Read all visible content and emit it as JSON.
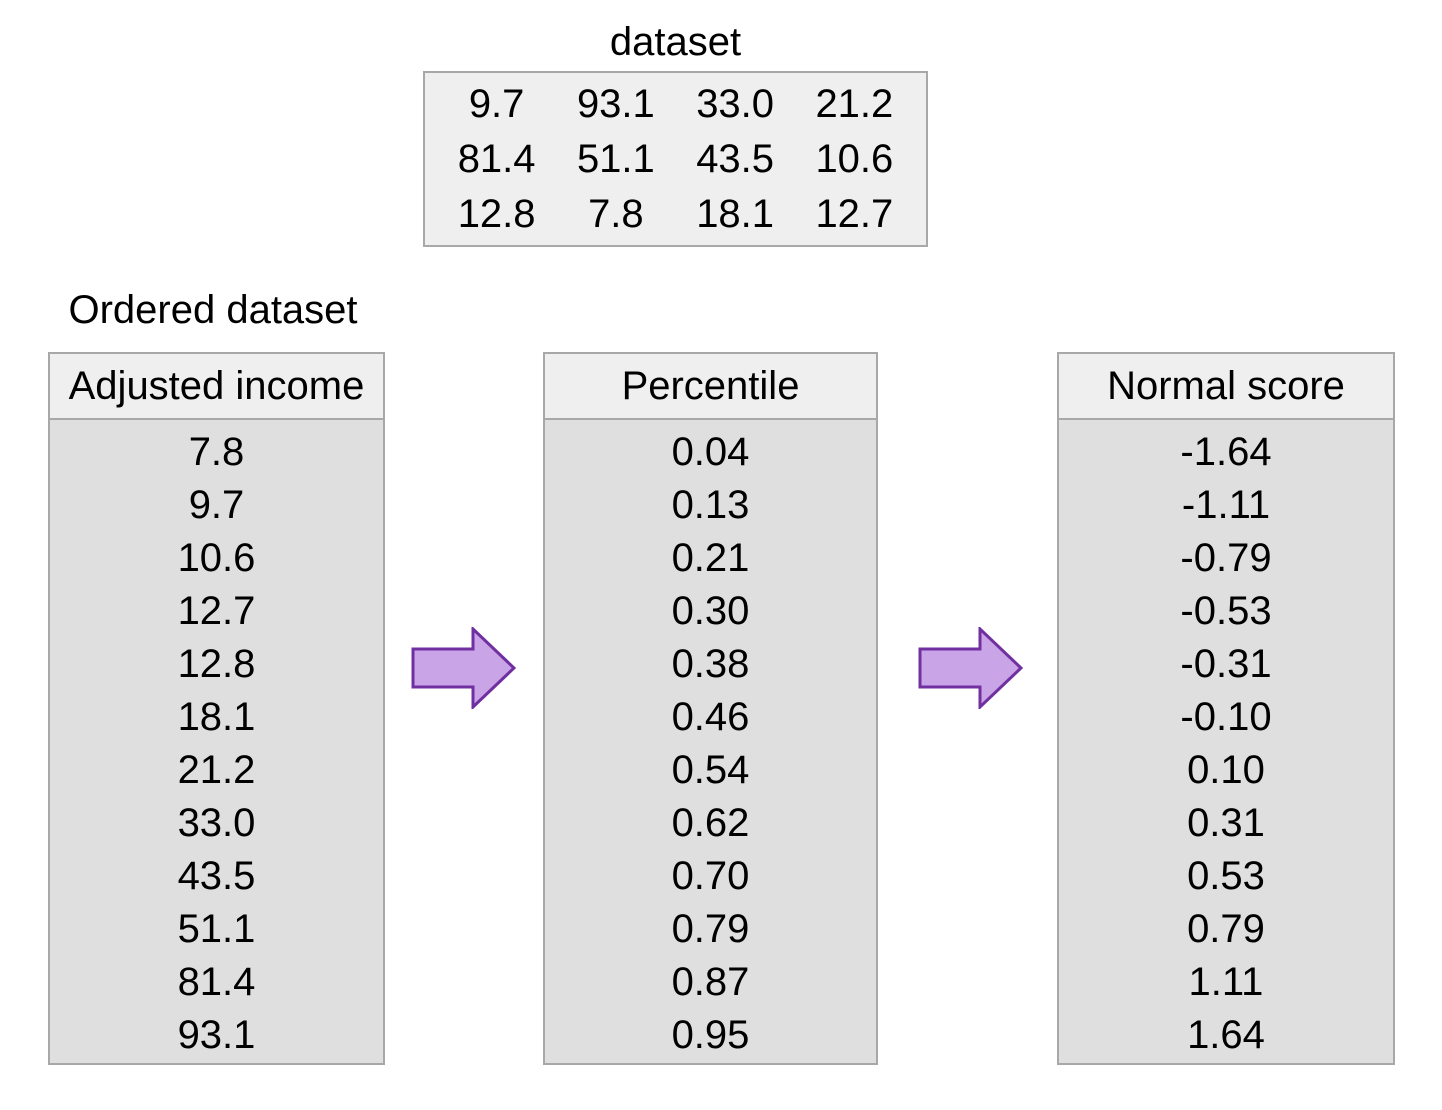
{
  "dataset_table": {
    "title": "dataset",
    "rows": [
      [
        "9.7",
        "93.1",
        "33.0",
        "21.2"
      ],
      [
        "81.4",
        "51.1",
        "43.5",
        "10.6"
      ],
      [
        "12.8",
        "7.8",
        "18.1",
        "12.7"
      ]
    ]
  },
  "ordered_dataset": {
    "label": "Ordered dataset",
    "columns": [
      {
        "header": "Adjusted income",
        "values": [
          "7.8",
          "9.7",
          "10.6",
          "12.7",
          "12.8",
          "18.1",
          "21.2",
          "33.0",
          "43.5",
          "51.1",
          "81.4",
          "93.1"
        ]
      },
      {
        "header": "Percentile",
        "values": [
          "0.04",
          "0.13",
          "0.21",
          "0.30",
          "0.38",
          "0.46",
          "0.54",
          "0.62",
          "0.70",
          "0.79",
          "0.87",
          "0.95"
        ]
      },
      {
        "header": "Normal score",
        "values": [
          "-1.64",
          "-1.11",
          "-0.79",
          "-0.53",
          "-0.31",
          "-0.10",
          "0.10",
          "0.31",
          "0.53",
          "0.79",
          "1.11",
          "1.64"
        ]
      }
    ]
  },
  "arrows": {
    "direction": "right",
    "fill": "#c9a5e8",
    "stroke": "#7030a0"
  },
  "colors": {
    "page_background": "#ffffff",
    "table_header_bg": "#efefef",
    "table_body_bg": "#dfdfdf",
    "table_border": "#a8a8a8",
    "text": "#000000"
  }
}
